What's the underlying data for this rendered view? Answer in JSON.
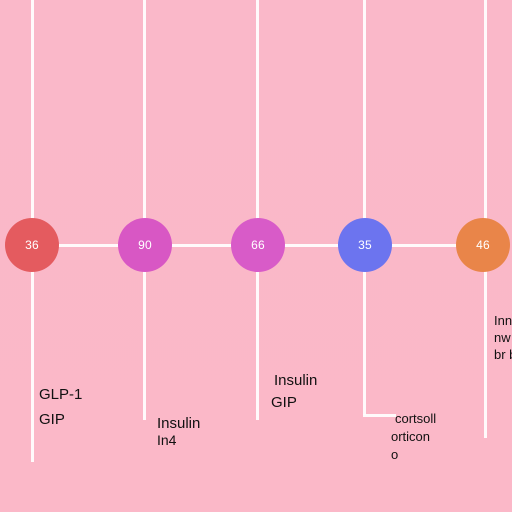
{
  "colors": {
    "background": "#fbb8c8",
    "lines": "#ffffff",
    "node_1": "#e45b5f",
    "node_2": "#d857c4",
    "node_3": "#d85bc8",
    "node_4": "#6c74ef",
    "node_5": "#e98549"
  },
  "nodes": [
    {
      "value": "36"
    },
    {
      "value": "90"
    },
    {
      "value": "66"
    },
    {
      "value": "35"
    },
    {
      "value": "46"
    }
  ],
  "labels": {
    "branch_1_line_1": "GLP-1",
    "branch_1_line_2": "GIP",
    "branch_2_line_1": "Insulin",
    "branch_2_line_2": "In4",
    "branch_3_line_1": "Insulin",
    "branch_3_line_2": "GIP",
    "branch_4_line_1": "cortsoll",
    "branch_4_line_2": "orticon",
    "branch_4_line_3": "o",
    "branch_5_line_1": "Inn",
    "branch_5_line_2": "nw",
    "branch_5_line_3": "br b"
  }
}
